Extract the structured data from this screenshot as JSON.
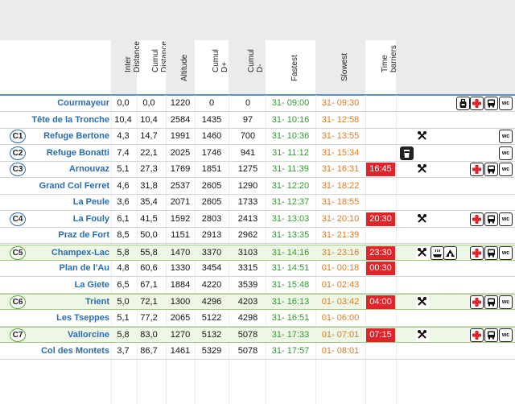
{
  "headers": {
    "inter": "Inter\nDistance",
    "cumul_dist": "Cumul\nDistance",
    "altitude": "Altitude",
    "dplus": "Cumul\nD+",
    "dminus": "Cumul\nD-",
    "fastest": "Fastest",
    "slowest": "Slowest",
    "barriers": "Time\nbarriers"
  },
  "colors": {
    "name": "#2a6db0",
    "fastest": "#2e9b2e",
    "slowest": "#e27a1c",
    "barrier_bg": "#e0242a",
    "highlight_bg": "#eef6e6"
  },
  "rows": [
    {
      "badge": "",
      "name": "Courmayeur",
      "inter": "0,0",
      "dist": "0,0",
      "alt": "1220",
      "dplus": "0",
      "dminus": "0",
      "fast": "31- 09:00",
      "slow": "31- 09:30",
      "barrier": "",
      "icons": [
        "bag-icon",
        "first-aid-icon",
        "bus-icon",
        "wc-icon"
      ]
    },
    {
      "badge": "",
      "name": "Tête de la Tronche",
      "inter": "10,4",
      "dist": "10,4",
      "alt": "2584",
      "dplus": "1435",
      "dminus": "97",
      "fast": "31- 10:16",
      "slow": "31- 12:58",
      "barrier": "",
      "icons": []
    },
    {
      "badge": "C1",
      "name": "Refuge Bertone",
      "inter": "4,3",
      "dist": "14,7",
      "alt": "1991",
      "dplus": "1460",
      "dminus": "700",
      "fast": "31- 10:36",
      "slow": "31- 13:55",
      "barrier": "",
      "icons": [
        "food-icon",
        "wc-icon"
      ]
    },
    {
      "badge": "C2",
      "name": "Refuge Bonatti",
      "inter": "7,4",
      "dist": "22,1",
      "alt": "2025",
      "dplus": "1746",
      "dminus": "941",
      "fast": "31- 11:12",
      "slow": "31- 15:34",
      "barrier": "",
      "icons": [
        "drink-icon",
        "wc-icon"
      ]
    },
    {
      "badge": "C3",
      "name": "Arnouvaz",
      "inter": "5,1",
      "dist": "27,3",
      "alt": "1769",
      "dplus": "1851",
      "dminus": "1275",
      "fast": "31- 11:39",
      "slow": "31- 16:31",
      "barrier": "16:45",
      "icons": [
        "food-icon",
        "first-aid-icon",
        "bus-icon",
        "wc-icon"
      ]
    },
    {
      "badge": "",
      "name": "Grand Col Ferret",
      "inter": "4,6",
      "dist": "31,8",
      "alt": "2537",
      "dplus": "2605",
      "dminus": "1290",
      "fast": "31- 12:20",
      "slow": "31- 18:22",
      "barrier": "",
      "icons": []
    },
    {
      "badge": "",
      "name": "La Peule",
      "inter": "3,6",
      "dist": "35,4",
      "alt": "2071",
      "dplus": "2605",
      "dminus": "1733",
      "fast": "31- 12:37",
      "slow": "31- 18:55",
      "barrier": "",
      "icons": []
    },
    {
      "badge": "C4",
      "name": "La Fouly",
      "inter": "6,1",
      "dist": "41,5",
      "alt": "1592",
      "dplus": "2803",
      "dminus": "2413",
      "fast": "31- 13:03",
      "slow": "31- 20:10",
      "barrier": "20:30",
      "icons": [
        "food-icon",
        "first-aid-icon",
        "bus-icon",
        "wc-icon"
      ]
    },
    {
      "badge": "",
      "name": "Praz de Fort",
      "inter": "8,5",
      "dist": "50,0",
      "alt": "1151",
      "dplus": "2913",
      "dminus": "2962",
      "fast": "31- 13:35",
      "slow": "31- 21:39",
      "barrier": "",
      "icons": []
    },
    {
      "badge": "C5",
      "name": "Champex-Lac",
      "inter": "5,8",
      "dist": "55,8",
      "alt": "1470",
      "dplus": "3370",
      "dminus": "3103",
      "fast": "31- 14:16",
      "slow": "31- 23:16",
      "barrier": "23:30",
      "icons": [
        "food-icon",
        "hot-meal-icon",
        "sleep-icon",
        "first-aid-icon",
        "bus-icon",
        "wc-icon"
      ],
      "hl": true
    },
    {
      "badge": "",
      "name": "Plan de l'Au",
      "inter": "4,8",
      "dist": "60,6",
      "alt": "1330",
      "dplus": "3454",
      "dminus": "3315",
      "fast": "31- 14:51",
      "slow": "01- 00:18",
      "barrier": "00:30",
      "icons": []
    },
    {
      "badge": "",
      "name": "La Giete",
      "inter": "6,5",
      "dist": "67,1",
      "alt": "1884",
      "dplus": "4220",
      "dminus": "3539",
      "fast": "31- 15:48",
      "slow": "01- 02:43",
      "barrier": "",
      "icons": []
    },
    {
      "badge": "C6",
      "name": "Trient",
      "inter": "5,0",
      "dist": "72,1",
      "alt": "1300",
      "dplus": "4296",
      "dminus": "4203",
      "fast": "31- 16:13",
      "slow": "01- 03:42",
      "barrier": "04:00",
      "icons": [
        "food-icon",
        "first-aid-icon",
        "bus-icon",
        "wc-icon"
      ],
      "hl": true
    },
    {
      "badge": "",
      "name": "Les Tseppes",
      "inter": "5,1",
      "dist": "77,2",
      "alt": "2065",
      "dplus": "5122",
      "dminus": "4298",
      "fast": "31- 16:51",
      "slow": "01- 06:00",
      "barrier": "",
      "icons": []
    },
    {
      "badge": "C7",
      "name": "Vallorcine",
      "inter": "5,8",
      "dist": "83,0",
      "alt": "1270",
      "dplus": "5132",
      "dminus": "5078",
      "fast": "31- 17:33",
      "slow": "01- 07:01",
      "barrier": "07:15",
      "icons": [
        "food-icon",
        "first-aid-icon",
        "bus-icon",
        "wc-icon"
      ],
      "hl": true
    },
    {
      "badge": "",
      "name": "Col des Montets",
      "inter": "3,7",
      "dist": "86,7",
      "alt": "1461",
      "dplus": "5329",
      "dminus": "5078",
      "fast": "31- 17:57",
      "slow": "01- 08:01",
      "barrier": "",
      "icons": []
    }
  ]
}
